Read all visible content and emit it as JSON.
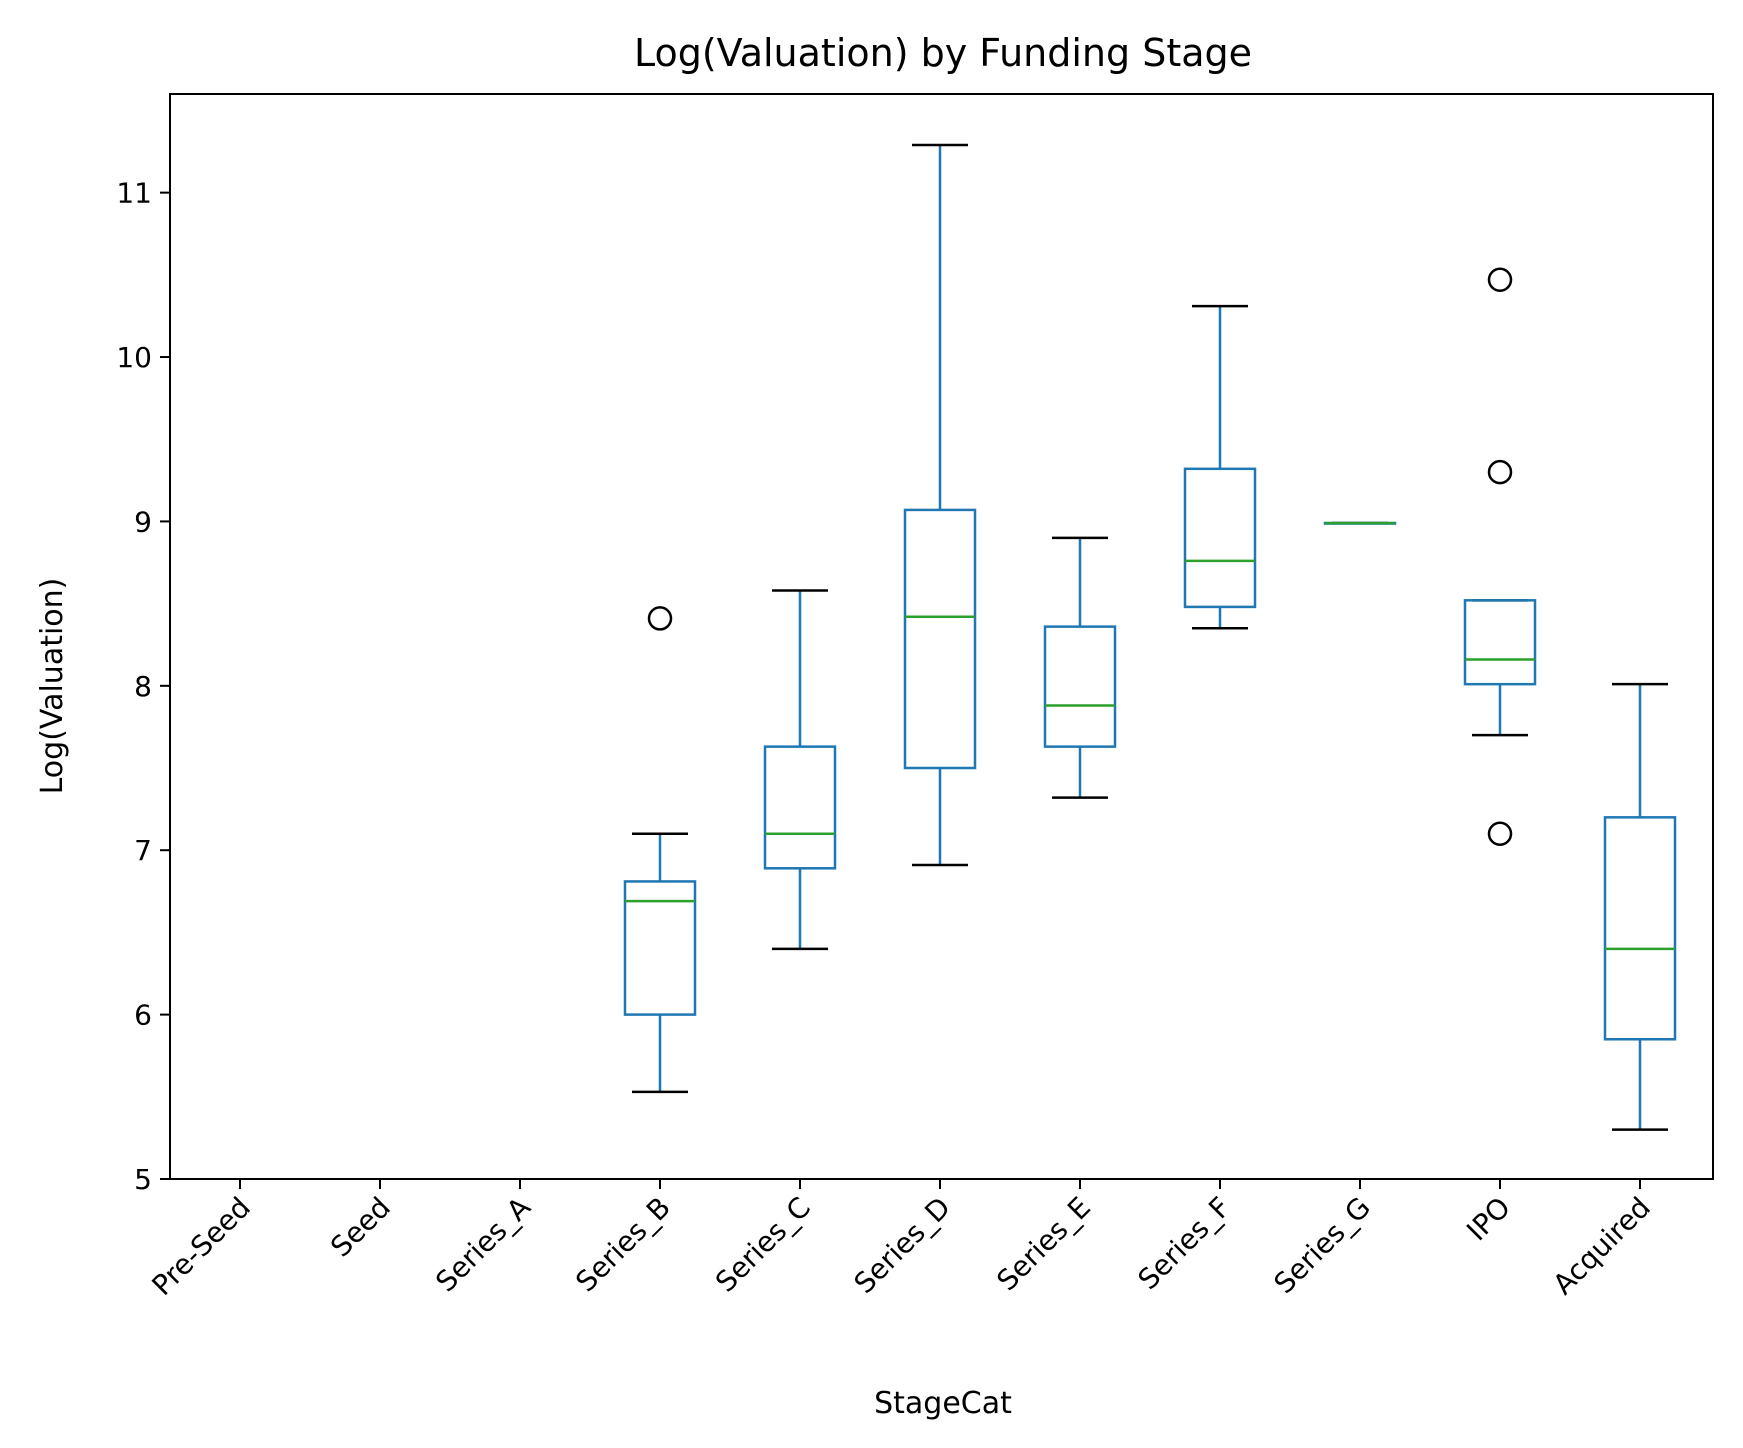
{
  "chart_data": {
    "type": "box",
    "title": "Log(Valuation) by Funding Stage",
    "xlabel": "StageCat",
    "ylabel": "Log(Valuation)",
    "ylim": [
      5,
      11.6
    ],
    "yticks": [
      5,
      6,
      7,
      8,
      9,
      10,
      11
    ],
    "grid": false,
    "categories": [
      "Pre-Seed",
      "Seed",
      "Series_A",
      "Series_B",
      "Series_C",
      "Series_D",
      "Series_E",
      "Series_F",
      "Series_G",
      "IPO",
      "Acquired"
    ],
    "boxes": [
      null,
      null,
      null,
      {
        "whisker_low": 5.53,
        "q1": 6.0,
        "median": 6.69,
        "q3": 6.81,
        "whisker_high": 7.1,
        "outliers": [
          8.41
        ]
      },
      {
        "whisker_low": 6.4,
        "q1": 6.89,
        "median": 7.1,
        "q3": 7.63,
        "whisker_high": 8.58,
        "outliers": []
      },
      {
        "whisker_low": 6.91,
        "q1": 7.5,
        "median": 8.42,
        "q3": 9.07,
        "whisker_high": 11.29,
        "outliers": []
      },
      {
        "whisker_low": 7.32,
        "q1": 7.63,
        "median": 7.88,
        "q3": 8.36,
        "whisker_high": 8.9,
        "outliers": []
      },
      {
        "whisker_low": 8.35,
        "q1": 8.48,
        "median": 8.76,
        "q3": 9.32,
        "whisker_high": 10.31,
        "outliers": []
      },
      {
        "whisker_low": 8.99,
        "q1": 8.99,
        "median": 8.99,
        "q3": 8.99,
        "whisker_high": 8.99,
        "outliers": []
      },
      {
        "whisker_low": 7.7,
        "q1": 8.01,
        "median": 8.16,
        "q3": 8.52,
        "whisker_high": 8.52,
        "outliers": [
          10.47,
          9.3,
          7.1
        ]
      },
      {
        "whisker_low": 5.3,
        "q1": 5.85,
        "median": 6.4,
        "q3": 7.2,
        "whisker_high": 8.01,
        "outliers": []
      }
    ],
    "colors": {
      "box": "#1f77b4",
      "median": "#2ca02c",
      "cap": "#000000",
      "outlier": "#000000",
      "axes": "#000000"
    }
  }
}
